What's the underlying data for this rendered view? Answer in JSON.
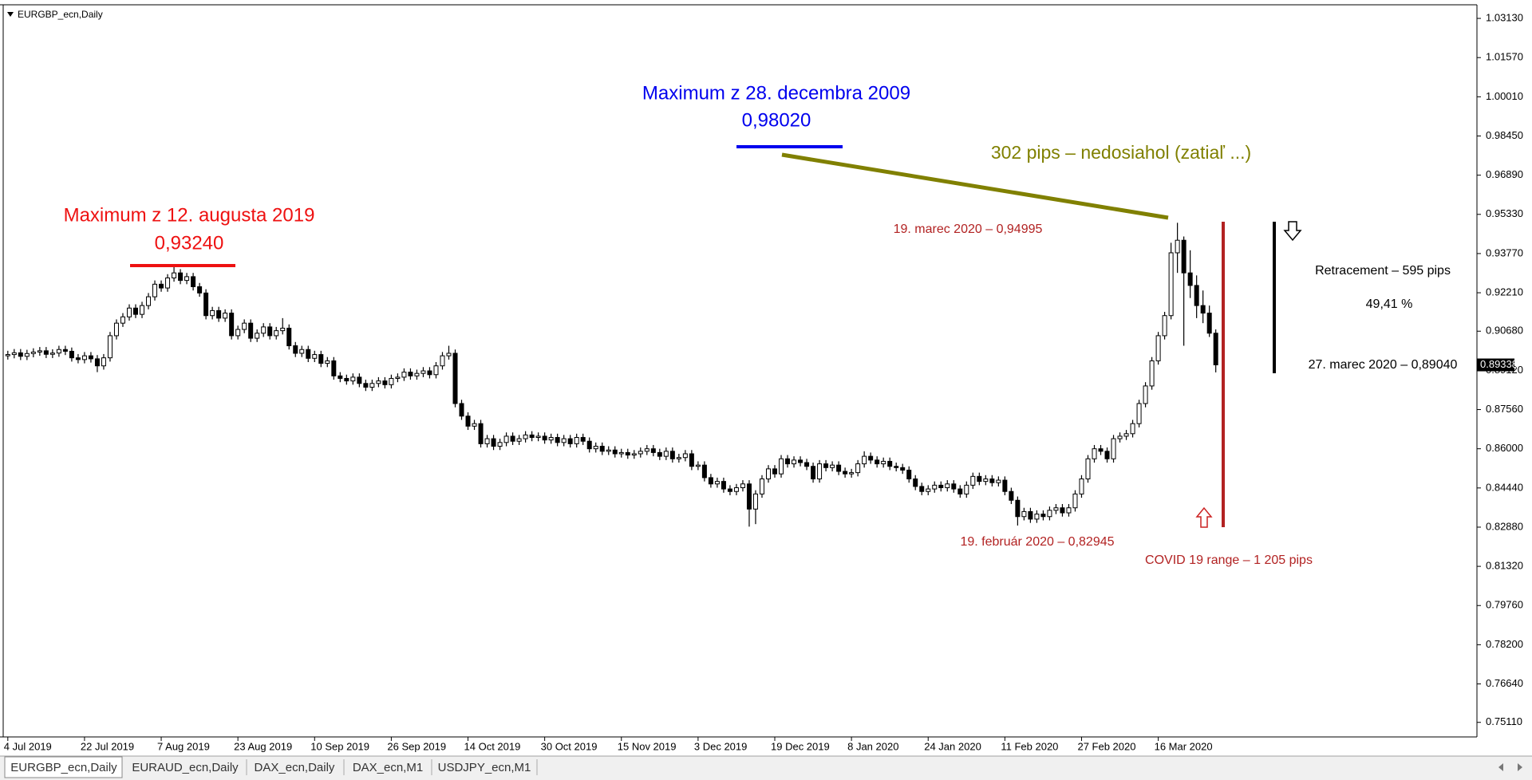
{
  "chart_data": {
    "type": "candlestick",
    "title": "EURGBP_ecn,Daily",
    "categories": [
      "4 Jul 2019",
      null,
      null,
      null,
      null,
      null,
      null,
      null,
      null,
      null,
      null,
      null,
      "22 Jul 2019",
      null,
      null,
      null,
      null,
      null,
      null,
      null,
      null,
      null,
      null,
      null,
      "7 Aug 2019",
      null,
      null,
      null,
      null,
      null,
      null,
      null,
      null,
      null,
      null,
      null,
      "23 Aug 2019",
      null,
      null,
      null,
      null,
      null,
      null,
      null,
      null,
      null,
      null,
      null,
      "10 Sep 2019",
      null,
      null,
      null,
      null,
      null,
      null,
      null,
      null,
      null,
      null,
      null,
      "26 Sep 2019",
      null,
      null,
      null,
      null,
      null,
      null,
      null,
      null,
      null,
      null,
      null,
      "14 Oct 2019",
      null,
      null,
      null,
      null,
      null,
      null,
      null,
      null,
      null,
      null,
      null,
      "30 Oct 2019",
      null,
      null,
      null,
      null,
      null,
      null,
      null,
      null,
      null,
      null,
      null,
      "15 Nov 2019",
      null,
      null,
      null,
      null,
      null,
      null,
      null,
      null,
      null,
      null,
      null,
      "3 Dec 2019",
      null,
      null,
      null,
      null,
      null,
      null,
      null,
      null,
      null,
      null,
      null,
      "19 Dec 2019",
      null,
      null,
      null,
      null,
      null,
      null,
      null,
      null,
      null,
      null,
      null,
      "8 Jan 2020",
      null,
      null,
      null,
      null,
      null,
      null,
      null,
      null,
      null,
      null,
      null,
      "24 Jan 2020",
      null,
      null,
      null,
      null,
      null,
      null,
      null,
      null,
      null,
      null,
      null,
      "11 Feb 2020",
      null,
      null,
      null,
      null,
      null,
      null,
      null,
      null,
      null,
      null,
      null,
      "27 Feb 2020",
      null,
      null,
      null,
      null,
      null,
      null,
      null,
      null,
      null,
      null,
      null,
      "16 Mar 2020",
      null,
      null,
      null,
      null,
      null,
      null,
      null,
      null,
      null
    ],
    "open": [
      0.897,
      0.8975,
      0.8982,
      0.8968,
      0.8979,
      0.8985,
      0.899,
      0.8976,
      0.8981,
      0.8995,
      0.8988,
      0.8962,
      0.8955,
      0.897,
      0.8958,
      0.893,
      0.8962,
      0.905,
      0.91,
      0.9125,
      0.916,
      0.9135,
      0.917,
      0.9205,
      0.9255,
      0.924,
      0.928,
      0.93,
      0.927,
      0.9285,
      0.9245,
      0.922,
      0.913,
      0.915,
      0.912,
      0.914,
      0.905,
      0.9075,
      0.91,
      0.904,
      0.906,
      0.9085,
      0.905,
      0.907,
      0.908,
      0.901,
      0.898,
      0.8995,
      0.896,
      0.8975,
      0.894,
      0.895,
      0.889,
      0.888,
      0.887,
      0.8885,
      0.886,
      0.8845,
      0.886,
      0.887,
      0.8855,
      0.888,
      0.8885,
      0.8905,
      0.889,
      0.89,
      0.891,
      0.8895,
      0.893,
      0.897,
      0.898,
      0.878,
      0.873,
      0.869,
      0.87,
      0.862,
      0.864,
      0.861,
      0.8625,
      0.865,
      0.863,
      0.864,
      0.8655,
      0.8645,
      0.865,
      0.8635,
      0.8645,
      0.8625,
      0.864,
      0.862,
      0.8645,
      0.863,
      0.86,
      0.861,
      0.859,
      0.8595,
      0.858,
      0.8585,
      0.8575,
      0.858,
      0.859,
      0.86,
      0.8585,
      0.857,
      0.859,
      0.856,
      0.8565,
      0.858,
      0.853,
      0.8535,
      0.8485,
      0.846,
      0.847,
      0.844,
      0.843,
      0.8445,
      0.846,
      0.836,
      0.842,
      0.848,
      0.852,
      0.85,
      0.856,
      0.854,
      0.8555,
      0.8545,
      0.853,
      0.848,
      0.854,
      0.8525,
      0.8535,
      0.851,
      0.85,
      0.8505,
      0.854,
      0.857,
      0.8555,
      0.854,
      0.855,
      0.853,
      0.8525,
      0.8515,
      0.848,
      0.845,
      0.843,
      0.844,
      0.8455,
      0.8445,
      0.846,
      0.844,
      0.842,
      0.8455,
      0.849,
      0.847,
      0.848,
      0.8465,
      0.8475,
      0.843,
      0.8395,
      0.833,
      0.835,
      0.832,
      0.834,
      0.833,
      0.8355,
      0.8365,
      0.8345,
      0.8365,
      0.842,
      0.848,
      0.856,
      0.86,
      0.859,
      0.856,
      0.864,
      0.865,
      0.866,
      0.87,
      0.878,
      0.885,
      0.895,
      0.905,
      0.913,
      0.938,
      0.943,
      0.93,
      0.925,
      0.917,
      0.914,
      0.906
    ],
    "high": [
      0.899,
      0.8997,
      0.8997,
      0.8994,
      0.9,
      0.9005,
      0.9005,
      0.8996,
      0.901,
      0.901,
      0.9003,
      0.8977,
      0.8985,
      0.8985,
      0.8973,
      0.8977,
      0.9065,
      0.9115,
      0.914,
      0.9175,
      0.9175,
      0.9185,
      0.922,
      0.927,
      0.927,
      0.9295,
      0.9324,
      0.9315,
      0.93,
      0.93,
      0.926,
      0.9235,
      0.9165,
      0.9165,
      0.9155,
      0.9155,
      0.909,
      0.9115,
      0.9115,
      0.9075,
      0.91,
      0.91,
      0.9085,
      0.912,
      0.9095,
      0.9025,
      0.901,
      0.901,
      0.899,
      0.899,
      0.8965,
      0.8965,
      0.8905,
      0.8895,
      0.89,
      0.89,
      0.8875,
      0.8875,
      0.8885,
      0.8885,
      0.8895,
      0.89,
      0.892,
      0.892,
      0.8915,
      0.8925,
      0.8925,
      0.8945,
      0.8985,
      0.901,
      0.8995,
      0.8795,
      0.8745,
      0.8715,
      0.8715,
      0.8655,
      0.8655,
      0.864,
      0.8665,
      0.8665,
      0.8655,
      0.867,
      0.867,
      0.8665,
      0.8665,
      0.866,
      0.866,
      0.8655,
      0.8655,
      0.866,
      0.866,
      0.8645,
      0.8625,
      0.8625,
      0.861,
      0.861,
      0.86,
      0.86,
      0.8595,
      0.8605,
      0.8615,
      0.8615,
      0.86,
      0.8605,
      0.8605,
      0.858,
      0.8595,
      0.8595,
      0.855,
      0.855,
      0.85,
      0.8485,
      0.8485,
      0.8455,
      0.846,
      0.8475,
      0.8475,
      0.8435,
      0.8495,
      0.8535,
      0.8535,
      0.8575,
      0.8575,
      0.857,
      0.857,
      0.856,
      0.8545,
      0.8555,
      0.8555,
      0.855,
      0.855,
      0.8525,
      0.852,
      0.8555,
      0.859,
      0.8585,
      0.857,
      0.8565,
      0.8565,
      0.8545,
      0.854,
      0.853,
      0.8495,
      0.8465,
      0.8455,
      0.847,
      0.847,
      0.8475,
      0.8475,
      0.8455,
      0.847,
      0.8505,
      0.8505,
      0.8495,
      0.8495,
      0.849,
      0.849,
      0.8445,
      0.841,
      0.8365,
      0.8365,
      0.8355,
      0.8355,
      0.837,
      0.838,
      0.838,
      0.838,
      0.8435,
      0.8495,
      0.8575,
      0.8615,
      0.8615,
      0.8605,
      0.8655,
      0.8665,
      0.8675,
      0.8715,
      0.8795,
      0.8865,
      0.8965,
      0.9065,
      0.9145,
      0.942,
      0.94995,
      0.9445,
      0.939,
      0.929,
      0.923,
      0.917,
      0.9075
    ],
    "low": [
      0.8955,
      0.896,
      0.8953,
      0.8953,
      0.8964,
      0.897,
      0.8961,
      0.8961,
      0.8966,
      0.8973,
      0.8947,
      0.894,
      0.894,
      0.8943,
      0.8905,
      0.8915,
      0.8947,
      0.9035,
      0.9085,
      0.911,
      0.912,
      0.912,
      0.9155,
      0.919,
      0.9225,
      0.9225,
      0.9265,
      0.9255,
      0.9255,
      0.923,
      0.9205,
      0.9115,
      0.9115,
      0.9105,
      0.9105,
      0.9035,
      0.9035,
      0.906,
      0.9025,
      0.9025,
      0.9045,
      0.9035,
      0.9035,
      0.9055,
      0.8995,
      0.8965,
      0.8965,
      0.8945,
      0.8945,
      0.8925,
      0.8925,
      0.8875,
      0.8865,
      0.8855,
      0.8855,
      0.8845,
      0.883,
      0.883,
      0.8845,
      0.884,
      0.884,
      0.8865,
      0.887,
      0.8875,
      0.8875,
      0.8885,
      0.888,
      0.888,
      0.8915,
      0.8955,
      0.8765,
      0.8715,
      0.8675,
      0.8675,
      0.8605,
      0.8605,
      0.8595,
      0.8595,
      0.861,
      0.8615,
      0.8615,
      0.8625,
      0.863,
      0.863,
      0.862,
      0.862,
      0.861,
      0.861,
      0.8605,
      0.8605,
      0.8615,
      0.8585,
      0.8585,
      0.8575,
      0.8575,
      0.8565,
      0.8565,
      0.856,
      0.856,
      0.8565,
      0.8575,
      0.857,
      0.8555,
      0.8555,
      0.8545,
      0.8545,
      0.855,
      0.8515,
      0.8515,
      0.847,
      0.8445,
      0.8445,
      0.8425,
      0.8415,
      0.8415,
      0.843,
      0.829,
      0.83,
      0.8405,
      0.8465,
      0.8485,
      0.8485,
      0.8525,
      0.8525,
      0.853,
      0.8515,
      0.8465,
      0.8465,
      0.851,
      0.851,
      0.8495,
      0.8485,
      0.8485,
      0.849,
      0.8525,
      0.854,
      0.8525,
      0.8525,
      0.8515,
      0.851,
      0.85,
      0.8465,
      0.8435,
      0.8415,
      0.8415,
      0.8425,
      0.843,
      0.843,
      0.8425,
      0.8405,
      0.8405,
      0.844,
      0.8455,
      0.8455,
      0.845,
      0.845,
      0.8415,
      0.838,
      0.82945,
      0.8315,
      0.8305,
      0.8305,
      0.8315,
      0.8315,
      0.834,
      0.833,
      0.833,
      0.835,
      0.8405,
      0.8465,
      0.8545,
      0.8575,
      0.8545,
      0.8545,
      0.8625,
      0.8635,
      0.8645,
      0.8685,
      0.8765,
      0.8835,
      0.8935,
      0.9035,
      0.9115,
      0.93,
      0.901,
      0.92,
      0.912,
      0.91,
      0.9045,
      0.8904
    ],
    "close": [
      0.8975,
      0.8982,
      0.8968,
      0.8979,
      0.8985,
      0.899,
      0.8976,
      0.8981,
      0.8995,
      0.8988,
      0.8962,
      0.8955,
      0.897,
      0.8958,
      0.893,
      0.8962,
      0.905,
      0.91,
      0.9125,
      0.916,
      0.9135,
      0.917,
      0.9205,
      0.9255,
      0.924,
      0.928,
      0.93,
      0.927,
      0.9285,
      0.9245,
      0.922,
      0.913,
      0.915,
      0.912,
      0.914,
      0.905,
      0.9075,
      0.91,
      0.904,
      0.906,
      0.9085,
      0.905,
      0.907,
      0.908,
      0.901,
      0.898,
      0.8995,
      0.896,
      0.8975,
      0.894,
      0.895,
      0.889,
      0.888,
      0.887,
      0.8885,
      0.886,
      0.8845,
      0.886,
      0.887,
      0.8855,
      0.888,
      0.8885,
      0.8905,
      0.889,
      0.89,
      0.891,
      0.8895,
      0.893,
      0.897,
      0.898,
      0.878,
      0.873,
      0.869,
      0.87,
      0.862,
      0.864,
      0.861,
      0.8625,
      0.865,
      0.863,
      0.864,
      0.8655,
      0.8645,
      0.865,
      0.8635,
      0.8645,
      0.8625,
      0.864,
      0.862,
      0.8645,
      0.863,
      0.86,
      0.861,
      0.859,
      0.8595,
      0.858,
      0.8585,
      0.8575,
      0.858,
      0.859,
      0.86,
      0.8585,
      0.857,
      0.859,
      0.856,
      0.8565,
      0.858,
      0.853,
      0.8535,
      0.8485,
      0.846,
      0.847,
      0.844,
      0.843,
      0.8445,
      0.846,
      0.836,
      0.842,
      0.848,
      0.852,
      0.85,
      0.856,
      0.854,
      0.8555,
      0.8545,
      0.853,
      0.848,
      0.854,
      0.8525,
      0.8535,
      0.851,
      0.85,
      0.8505,
      0.854,
      0.857,
      0.8555,
      0.854,
      0.855,
      0.853,
      0.8525,
      0.8515,
      0.848,
      0.845,
      0.843,
      0.844,
      0.8455,
      0.8445,
      0.846,
      0.844,
      0.842,
      0.8455,
      0.849,
      0.847,
      0.848,
      0.8465,
      0.8475,
      0.843,
      0.8395,
      0.833,
      0.835,
      0.832,
      0.834,
      0.833,
      0.8355,
      0.8365,
      0.8345,
      0.8365,
      0.842,
      0.848,
      0.856,
      0.86,
      0.859,
      0.856,
      0.864,
      0.865,
      0.866,
      0.87,
      0.878,
      0.885,
      0.895,
      0.905,
      0.913,
      0.938,
      0.943,
      0.93,
      0.925,
      0.917,
      0.914,
      0.906,
      0.8934
    ],
    "ylim": [
      0.7453,
      1.0364
    ],
    "yticks": [
      {
        "value": 1.0313,
        "label": "1.03130"
      },
      {
        "value": 1.0157,
        "label": "1.01570"
      },
      {
        "value": 1.0001,
        "label": "1.00010"
      },
      {
        "value": 0.9845,
        "label": "0.98450"
      },
      {
        "value": 0.9689,
        "label": "0.96890"
      },
      {
        "value": 0.9533,
        "label": "0.95330"
      },
      {
        "value": 0.9377,
        "label": "0.93770"
      },
      {
        "value": 0.9221,
        "label": "0.92210"
      },
      {
        "value": 0.9068,
        "label": "0.90680"
      },
      {
        "value": 0.8912,
        "label": "0.89120"
      },
      {
        "value": 0.8756,
        "label": "0.87560"
      },
      {
        "value": 0.86,
        "label": "0.86000"
      },
      {
        "value": 0.8444,
        "label": "0.84440"
      },
      {
        "value": 0.8288,
        "label": "0.82880"
      },
      {
        "value": 0.8132,
        "label": "0.81320"
      },
      {
        "value": 0.7976,
        "label": "0.79760"
      },
      {
        "value": 0.782,
        "label": "0.78200"
      },
      {
        "value": 0.7664,
        "label": "0.76640"
      },
      {
        "value": 0.7511,
        "label": "0.75110"
      }
    ],
    "current_price": {
      "value": 0.89338,
      "label": "0.89338"
    },
    "up_color": "#ffffff",
    "down_color": "#000000",
    "annotations": [
      "Maximum z 12. augusta 2019",
      "0,93240",
      "Maximum z 28. decembra 2009",
      "0,98020",
      "302 pips – nedosiahol (zatiaľ ...)",
      "19. marec 2020  – 0,94995",
      "19. február 2020  – 0,82945",
      "COVID 19 range – 1 205 pips",
      "Retracement – 595 pips",
      "49,41 %",
      "27. marec 2020 – 0,89040"
    ]
  },
  "tabs": [
    "EURGBP_ecn,Daily",
    "EURAUD_ecn,Daily",
    "DAX_ecn,Daily",
    "DAX_ecn,M1",
    "USDJPY_ecn,M1"
  ]
}
